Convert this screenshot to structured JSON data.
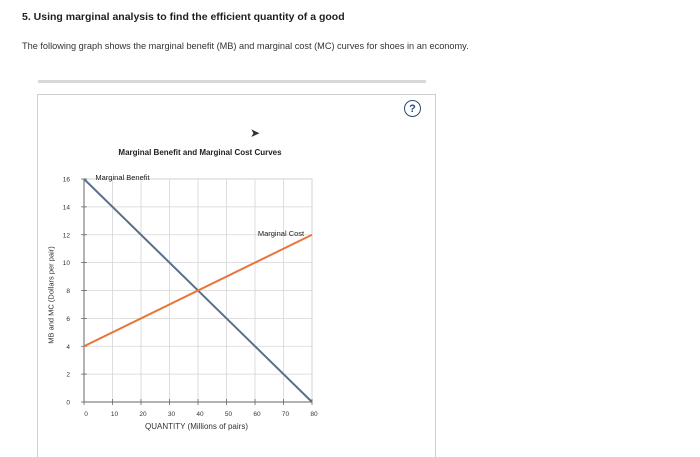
{
  "question": {
    "title": "5. Using marginal analysis to find the efficient quantity of a good",
    "description": "The following graph shows the marginal benefit (MB) and marginal cost (MC) curves for shoes in an economy."
  },
  "help_button": {
    "label": "?"
  },
  "chart_data": {
    "type": "line",
    "title": "Marginal Benefit and Marginal Cost Curves",
    "xlabel": "QUANTITY (Millions of pairs)",
    "ylabel": "MB and MC (Dollars per pair)",
    "xlim": [
      0,
      80
    ],
    "ylim": [
      0,
      16
    ],
    "x_ticks": [
      0,
      10,
      20,
      30,
      40,
      50,
      60,
      70,
      80
    ],
    "y_ticks": [
      0,
      2,
      4,
      6,
      8,
      10,
      12,
      14,
      16
    ],
    "grid": true,
    "series": [
      {
        "name": "Marginal Benefit",
        "color": "#5a6f8a",
        "x": [
          0,
          80
        ],
        "y": [
          16,
          0
        ]
      },
      {
        "name": "Marginal Cost",
        "color": "#e8763a",
        "x": [
          0,
          80
        ],
        "y": [
          4,
          12
        ]
      }
    ],
    "annotations": [
      {
        "text": "Marginal Benefit",
        "x": 4,
        "y": 16
      },
      {
        "text": "Marginal Cost",
        "x": 61,
        "y": 12
      }
    ]
  }
}
